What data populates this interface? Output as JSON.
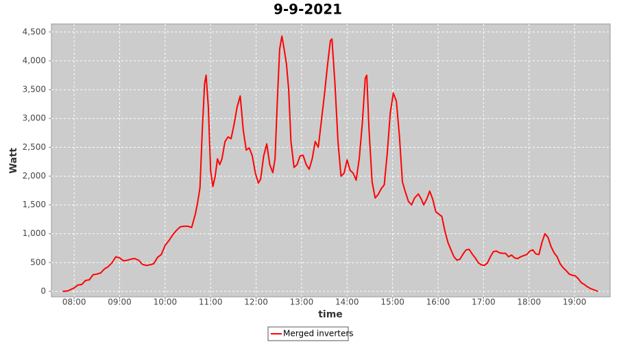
{
  "chart_data": {
    "type": "line",
    "title": "9-9-2021",
    "x_label": "time",
    "y_label": "Watt",
    "x": [
      "07:45",
      "07:52",
      "08:00",
      "08:05",
      "08:10",
      "08:15",
      "08:20",
      "08:25",
      "08:30",
      "08:35",
      "08:40",
      "08:45",
      "08:50",
      "08:55",
      "09:00",
      "09:05",
      "09:10",
      "09:15",
      "09:20",
      "09:25",
      "09:30",
      "09:35",
      "09:40",
      "09:45",
      "09:50",
      "09:55",
      "10:00",
      "10:05",
      "10:10",
      "10:15",
      "10:20",
      "10:25",
      "10:30",
      "10:35",
      "10:40",
      "10:43",
      "10:46",
      "10:49",
      "10:52",
      "10:54",
      "10:57",
      "11:00",
      "11:03",
      "11:06",
      "11:09",
      "11:12",
      "11:15",
      "11:19",
      "11:23",
      "11:27",
      "11:31",
      "11:35",
      "11:39",
      "11:43",
      "11:47",
      "11:51",
      "11:55",
      "11:59",
      "12:03",
      "12:06",
      "12:10",
      "12:14",
      "12:18",
      "12:22",
      "12:25",
      "12:28",
      "12:31",
      "12:34",
      "12:37",
      "12:40",
      "12:43",
      "12:46",
      "12:50",
      "12:54",
      "12:58",
      "13:02",
      "13:06",
      "13:10",
      "13:14",
      "13:18",
      "13:22",
      "13:26",
      "13:30",
      "13:34",
      "13:38",
      "13:40",
      "13:44",
      "13:48",
      "13:52",
      "13:56",
      "14:00",
      "14:04",
      "14:08",
      "14:12",
      "14:16",
      "14:20",
      "14:24",
      "14:26",
      "14:29",
      "14:33",
      "14:37",
      "14:41",
      "14:45",
      "14:49",
      "14:53",
      "14:57",
      "15:01",
      "15:05",
      "15:09",
      "15:13",
      "15:17",
      "15:21",
      "15:25",
      "15:29",
      "15:34",
      "15:38",
      "15:41",
      "15:45",
      "15:49",
      "15:53",
      "15:57",
      "16:01",
      "16:05",
      "16:09",
      "16:13",
      "16:17",
      "16:21",
      "16:25",
      "16:29",
      "16:33",
      "16:37",
      "16:41",
      "16:45",
      "16:49",
      "16:53",
      "16:57",
      "17:01",
      "17:05",
      "17:09",
      "17:13",
      "17:17",
      "17:21",
      "17:25",
      "17:29",
      "17:33",
      "17:37",
      "17:41",
      "17:45",
      "17:49",
      "17:53",
      "17:57",
      "18:01",
      "18:05",
      "18:09",
      "18:13",
      "18:17",
      "18:21",
      "18:25",
      "18:29",
      "18:33",
      "18:37",
      "18:41",
      "18:45",
      "18:49",
      "18:53",
      "18:57",
      "19:01",
      "19:05",
      "19:09",
      "19:13",
      "19:17",
      "19:21",
      "19:25",
      "19:31"
    ],
    "series": [
      {
        "name": "Merged inverters",
        "color": "#ff0000",
        "values": [
          0,
          10,
          60,
          110,
          120,
          190,
          200,
          290,
          300,
          320,
          390,
          430,
          500,
          600,
          580,
          530,
          540,
          560,
          570,
          540,
          470,
          450,
          460,
          480,
          590,
          640,
          800,
          880,
          980,
          1060,
          1120,
          1130,
          1130,
          1110,
          1350,
          1550,
          1800,
          2800,
          3600,
          3750,
          3200,
          2100,
          1820,
          2000,
          2300,
          2200,
          2300,
          2600,
          2680,
          2650,
          2900,
          3200,
          3390,
          2800,
          2450,
          2490,
          2350,
          2050,
          1880,
          1950,
          2350,
          2560,
          2200,
          2060,
          2300,
          3300,
          4200,
          4430,
          4200,
          3950,
          3500,
          2600,
          2150,
          2200,
          2350,
          2360,
          2200,
          2120,
          2300,
          2600,
          2500,
          2950,
          3400,
          3900,
          4350,
          4380,
          3600,
          2600,
          2000,
          2050,
          2280,
          2100,
          2050,
          1930,
          2300,
          2900,
          3700,
          3750,
          2800,
          1900,
          1620,
          1680,
          1780,
          1850,
          2400,
          3100,
          3440,
          3300,
          2700,
          1900,
          1720,
          1560,
          1500,
          1620,
          1690,
          1600,
          1500,
          1600,
          1740,
          1600,
          1380,
          1340,
          1300,
          1050,
          850,
          720,
          600,
          540,
          560,
          650,
          720,
          730,
          650,
          580,
          500,
          460,
          450,
          490,
          600,
          690,
          700,
          670,
          660,
          660,
          600,
          630,
          580,
          570,
          600,
          620,
          640,
          700,
          720,
          650,
          640,
          850,
          1000,
          940,
          780,
          670,
          600,
          480,
          410,
          360,
          300,
          280,
          270,
          220,
          150,
          120,
          80,
          50,
          30,
          0
        ]
      }
    ],
    "xlim": [
      "07:30",
      "19:47"
    ],
    "xticks": [
      "08:00",
      "09:00",
      "10:00",
      "11:00",
      "12:00",
      "13:00",
      "14:00",
      "15:00",
      "16:00",
      "17:00",
      "18:00",
      "19:00"
    ],
    "ylim": [
      -95,
      4640
    ],
    "yticks": [
      0,
      500,
      {
        "value": 1000,
        "label": "1,000"
      },
      {
        "value": 1500,
        "label": "1,500"
      },
      {
        "value": 2000,
        "label": "2,000"
      },
      {
        "value": 2500,
        "label": "2,500"
      },
      {
        "value": 3000,
        "label": "3,000"
      },
      {
        "value": 3500,
        "label": "3,500"
      },
      {
        "value": 4000,
        "label": "4,000"
      },
      {
        "value": 4500,
        "label": "4,500"
      }
    ],
    "grid": true,
    "legend": "bottom"
  }
}
